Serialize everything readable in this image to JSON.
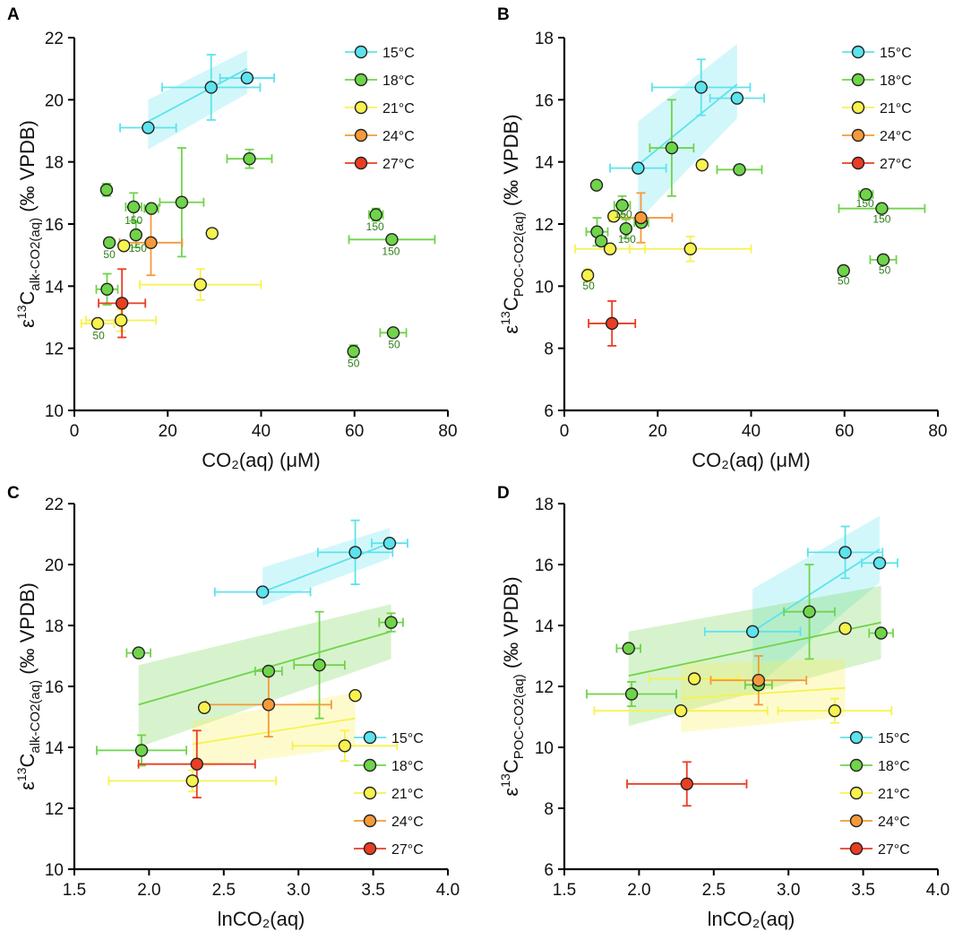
{
  "colors": {
    "15°C": "#5ce3ee",
    "18°C": "#6fd44a",
    "21°C": "#f7f24e",
    "24°C": "#f59a3a",
    "27°C": "#ea3d22"
  },
  "legend": [
    "15°C",
    "18°C",
    "21°C",
    "24°C",
    "27°C"
  ],
  "chart_data": [
    {
      "id": "A",
      "type": "scatter",
      "letter": "A",
      "xlabel": "CO₂(aq) (μM)",
      "ylabel": "ε¹³C_alk-CO2(aq) (‰ VPDB)",
      "ylabel_main": "C",
      "ylabel_sub": "alk-CO2(aq)",
      "ylabel_tail": " (‰ VPDB)",
      "xlim": [
        0,
        80
      ],
      "ylim": [
        10,
        22
      ],
      "xticks": [
        0,
        20,
        40,
        60,
        80
      ],
      "yticks": [
        10,
        12,
        14,
        16,
        18,
        20,
        22
      ],
      "xtick_labels": [
        "0",
        "20",
        "40",
        "60",
        "80"
      ],
      "ytick_labels": [
        "10",
        "12",
        "14",
        "16",
        "18",
        "20",
        "22"
      ],
      "legend_pos": "top-right",
      "series": [
        {
          "name": "15°C",
          "points": [
            {
              "x": 15.8,
              "y": 19.1,
              "xe": 6.0,
              "ye": 0
            },
            {
              "x": 29.3,
              "y": 20.4,
              "xe": 10.5,
              "ye": 1.05
            },
            {
              "x": 37.0,
              "y": 20.7,
              "xe": 5.8,
              "ye": 0
            }
          ],
          "fit": [
            [
              15.8,
              19.3
            ],
            [
              37.0,
              21.0
            ]
          ],
          "band": [
            [
              15.8,
              18.4,
              20.0
            ],
            [
              37.0,
              20.2,
              21.6
            ]
          ]
        },
        {
          "name": "18°C",
          "points": [
            {
              "x": 6.9,
              "y": 17.1,
              "xe": 0.5,
              "ye": 0.2
            },
            {
              "x": 7.5,
              "y": 15.4,
              "xe": 0,
              "ye": 0
            },
            {
              "x": 7.0,
              "y": 13.9,
              "xe": 2.3,
              "ye": 0.5
            },
            {
              "x": 12.7,
              "y": 16.55,
              "xe": 1.7,
              "ye": 0.45
            },
            {
              "x": 13.2,
              "y": 15.65,
              "xe": 0,
              "ye": 0.4
            },
            {
              "x": 16.5,
              "y": 16.5,
              "xe": 1.5,
              "ye": 0
            },
            {
              "x": 23.0,
              "y": 16.7,
              "xe": 4.7,
              "ye": 1.75
            },
            {
              "x": 37.5,
              "y": 18.1,
              "xe": 4.8,
              "ye": 0.3
            },
            {
              "x": 64.6,
              "y": 16.3,
              "xe": 1.5,
              "ye": 0.2
            },
            {
              "x": 68.0,
              "y": 15.5,
              "xe": 9.2,
              "ye": 0
            },
            {
              "x": 59.8,
              "y": 11.9,
              "xe": 0,
              "ye": 0.2
            },
            {
              "x": 68.3,
              "y": 12.5,
              "xe": 2.8,
              "ye": 0
            }
          ]
        },
        {
          "name": "21°C",
          "points": [
            {
              "x": 5.0,
              "y": 12.8,
              "xe": 3.5,
              "ye": 0
            },
            {
              "x": 10.0,
              "y": 12.9,
              "xe": 7.5,
              "ye": 0.35
            },
            {
              "x": 10.6,
              "y": 15.3,
              "xe": 0,
              "ye": 0
            },
            {
              "x": 27.0,
              "y": 14.05,
              "xe": 13.0,
              "ye": 0.5
            },
            {
              "x": 29.5,
              "y": 15.7,
              "xe": 0,
              "ye": 0
            }
          ]
        },
        {
          "name": "24°C",
          "points": [
            {
              "x": 16.4,
              "y": 15.4,
              "xe": 6.7,
              "ye": 1.05
            }
          ]
        },
        {
          "name": "27°C",
          "points": [
            {
              "x": 10.2,
              "y": 13.45,
              "xe": 5.0,
              "ye": 1.1
            }
          ]
        }
      ],
      "annotations": [
        {
          "text": "150",
          "x": 12.7,
          "y": 16.0
        },
        {
          "text": "150",
          "x": 13.6,
          "y": 15.1
        },
        {
          "text": "150",
          "x": 64.4,
          "y": 15.8
        },
        {
          "text": "150",
          "x": 67.8,
          "y": 15.0
        },
        {
          "text": "50",
          "x": 7.5,
          "y": 14.9
        },
        {
          "text": "50",
          "x": 5.2,
          "y": 12.3
        },
        {
          "text": "50",
          "x": 59.8,
          "y": 11.4
        },
        {
          "text": "50",
          "x": 68.5,
          "y": 12.0
        }
      ]
    },
    {
      "id": "B",
      "type": "scatter",
      "letter": "B",
      "xlabel": "CO₂(aq) (μM)",
      "ylabel": "ε¹³C_POC-CO2(aq) (‰ VPDB)",
      "ylabel_main": "C",
      "ylabel_sub": "POC-CO2(aq)",
      "ylabel_tail": " (‰ VPDB)",
      "xlim": [
        0,
        80
      ],
      "ylim": [
        6,
        18
      ],
      "xticks": [
        0,
        20,
        40,
        60,
        80
      ],
      "yticks": [
        6,
        8,
        10,
        12,
        14,
        16,
        18
      ],
      "xtick_labels": [
        "0",
        "20",
        "40",
        "60",
        "80"
      ],
      "ytick_labels": [
        "6",
        "8",
        "10",
        "12",
        "14",
        "16",
        "18"
      ],
      "legend_pos": "top-right",
      "series": [
        {
          "name": "15°C",
          "points": [
            {
              "x": 15.8,
              "y": 13.8,
              "xe": 6.0,
              "ye": 0
            },
            {
              "x": 29.3,
              "y": 16.4,
              "xe": 10.5,
              "ye": 0.9
            },
            {
              "x": 37.0,
              "y": 16.05,
              "xe": 5.8,
              "ye": 0
            }
          ],
          "fit": [
            [
              15.8,
              13.9
            ],
            [
              37.0,
              16.5
            ]
          ],
          "band": [
            [
              15.8,
              12.1,
              15.3
            ],
            [
              37.0,
              15.4,
              17.8
            ]
          ]
        },
        {
          "name": "18°C",
          "points": [
            {
              "x": 6.9,
              "y": 13.25,
              "xe": 0,
              "ye": 0
            },
            {
              "x": 7.0,
              "y": 11.75,
              "xe": 2.3,
              "ye": 0.45
            },
            {
              "x": 7.9,
              "y": 11.45,
              "xe": 0,
              "ye": 0
            },
            {
              "x": 12.4,
              "y": 12.6,
              "xe": 1.7,
              "ye": 0.3
            },
            {
              "x": 13.2,
              "y": 11.85,
              "xe": 0,
              "ye": 0.3
            },
            {
              "x": 16.5,
              "y": 12.05,
              "xe": 1.5,
              "ye": 0
            },
            {
              "x": 23.0,
              "y": 14.45,
              "xe": 4.7,
              "ye": 1.55
            },
            {
              "x": 37.5,
              "y": 13.75,
              "xe": 4.8,
              "ye": 0
            },
            {
              "x": 64.6,
              "y": 12.95,
              "xe": 1.5,
              "ye": 0
            },
            {
              "x": 68.0,
              "y": 12.5,
              "xe": 9.2,
              "ye": 0
            },
            {
              "x": 59.8,
              "y": 10.5,
              "xe": 0,
              "ye": 0
            },
            {
              "x": 68.3,
              "y": 10.85,
              "xe": 2.8,
              "ye": 0
            }
          ]
        },
        {
          "name": "21°C",
          "points": [
            {
              "x": 5.0,
              "y": 10.35,
              "xe": 0,
              "ye": 0.2
            },
            {
              "x": 9.8,
              "y": 11.2,
              "xe": 7.5,
              "ye": 0
            },
            {
              "x": 10.6,
              "y": 12.25,
              "xe": 0,
              "ye": 0
            },
            {
              "x": 27.0,
              "y": 11.2,
              "xe": 13.0,
              "ye": 0.4
            },
            {
              "x": 29.5,
              "y": 13.9,
              "xe": 0,
              "ye": 0
            }
          ]
        },
        {
          "name": "24°C",
          "points": [
            {
              "x": 16.4,
              "y": 12.2,
              "xe": 6.7,
              "ye": 0.8
            }
          ]
        },
        {
          "name": "27°C",
          "points": [
            {
              "x": 10.2,
              "y": 8.8,
              "xe": 5.0,
              "ye": 0.72
            }
          ]
        }
      ],
      "annotations": [
        {
          "text": "150",
          "x": 12.6,
          "y": 12.2
        },
        {
          "text": "150",
          "x": 13.4,
          "y": 11.4
        },
        {
          "text": "150",
          "x": 64.4,
          "y": 12.55
        },
        {
          "text": "150",
          "x": 68.0,
          "y": 12.05
        },
        {
          "text": "50",
          "x": 5.2,
          "y": 9.9
        },
        {
          "text": "50",
          "x": 59.8,
          "y": 10.05
        },
        {
          "text": "50",
          "x": 68.6,
          "y": 10.4
        }
      ]
    },
    {
      "id": "C",
      "type": "scatter",
      "letter": "C",
      "xlabel": "lnCO₂(aq)",
      "ylabel": "ε¹³C_alk-CO2(aq) (‰ VPDB)",
      "ylabel_main": "C",
      "ylabel_sub": "alk-CO2(aq)",
      "ylabel_tail": " (‰ VPDB)",
      "xlim": [
        1.5,
        4.0
      ],
      "ylim": [
        10,
        22
      ],
      "xticks": [
        1.5,
        2.0,
        2.5,
        3.0,
        3.5,
        4.0
      ],
      "yticks": [
        10,
        12,
        14,
        16,
        18,
        20,
        22
      ],
      "xtick_labels": [
        "1.5",
        "2.0",
        "2.5",
        "3.0",
        "3.5",
        "4.0"
      ],
      "ytick_labels": [
        "10",
        "12",
        "14",
        "16",
        "18",
        "20",
        "22"
      ],
      "legend_pos": "bottom-right",
      "series": [
        {
          "name": "15°C",
          "points": [
            {
              "x": 2.76,
              "y": 19.1,
              "xe": 0.32,
              "ye": 0
            },
            {
              "x": 3.38,
              "y": 20.4,
              "xe": 0.25,
              "ye": 1.05
            },
            {
              "x": 3.61,
              "y": 20.7,
              "xe": 0.12,
              "ye": 0
            }
          ],
          "fit": [
            [
              2.76,
              19.1
            ],
            [
              3.61,
              20.7
            ]
          ],
          "band": [
            [
              2.76,
              18.65,
              19.9
            ],
            [
              3.61,
              20.2,
              21.2
            ]
          ]
        },
        {
          "name": "18°C",
          "points": [
            {
              "x": 1.93,
              "y": 17.1,
              "xe": 0.08,
              "ye": 0
            },
            {
              "x": 1.95,
              "y": 13.9,
              "xe": 0.3,
              "ye": 0.5
            },
            {
              "x": 2.8,
              "y": 16.5,
              "xe": 0.09,
              "ye": 0
            },
            {
              "x": 3.14,
              "y": 16.7,
              "xe": 0.17,
              "ye": 1.75
            },
            {
              "x": 3.62,
              "y": 18.1,
              "xe": 0.08,
              "ye": 0.3
            }
          ],
          "fit": [
            [
              1.93,
              15.4
            ],
            [
              3.62,
              17.8
            ]
          ],
          "band": [
            [
              1.93,
              14.0,
              16.7
            ],
            [
              3.62,
              16.9,
              18.7
            ]
          ]
        },
        {
          "name": "21°C",
          "points": [
            {
              "x": 2.29,
              "y": 12.9,
              "xe": 0.56,
              "ye": 0.35
            },
            {
              "x": 2.37,
              "y": 15.3,
              "xe": 0,
              "ye": 0
            },
            {
              "x": 3.31,
              "y": 14.05,
              "xe": 0.35,
              "ye": 0.5
            },
            {
              "x": 3.38,
              "y": 15.7,
              "xe": 0,
              "ye": 0
            }
          ],
          "fit": [
            [
              2.29,
              14.1
            ],
            [
              3.38,
              14.95
            ]
          ],
          "band": [
            [
              2.29,
              13.3,
              14.85
            ],
            [
              3.38,
              14.0,
              15.8
            ]
          ]
        },
        {
          "name": "24°C",
          "points": [
            {
              "x": 2.8,
              "y": 15.4,
              "xe": 0.42,
              "ye": 1.05
            }
          ]
        },
        {
          "name": "27°C",
          "points": [
            {
              "x": 2.32,
              "y": 13.45,
              "xe": 0.39,
              "ye": 1.1
            }
          ]
        }
      ],
      "annotations": []
    },
    {
      "id": "D",
      "type": "scatter",
      "letter": "D",
      "xlabel": "lnCO₂(aq)",
      "ylabel": "ε¹³C_POC-CO2(aq) (‰ VPDB)",
      "ylabel_main": "C",
      "ylabel_sub": "POC-CO2(aq)",
      "ylabel_tail": " (‰ VPDB)",
      "xlim": [
        1.5,
        4.0
      ],
      "ylim": [
        6,
        18
      ],
      "xticks": [
        1.5,
        2.0,
        2.5,
        3.0,
        3.5,
        4.0
      ],
      "yticks": [
        6,
        8,
        10,
        12,
        14,
        16,
        18
      ],
      "xtick_labels": [
        "1.5",
        "2.0",
        "2.5",
        "3.0",
        "3.5",
        "4.0"
      ],
      "ytick_labels": [
        "6",
        "8",
        "10",
        "12",
        "14",
        "16",
        "18"
      ],
      "legend_pos": "bottom-right",
      "series": [
        {
          "name": "15°C",
          "points": [
            {
              "x": 2.76,
              "y": 13.8,
              "xe": 0.32,
              "ye": 0
            },
            {
              "x": 3.38,
              "y": 16.4,
              "xe": 0.25,
              "ye": 0.85
            },
            {
              "x": 3.61,
              "y": 16.05,
              "xe": 0.12,
              "ye": 0
            }
          ],
          "fit": [
            [
              2.76,
              13.8
            ],
            [
              3.61,
              16.5
            ]
          ],
          "band": [
            [
              2.76,
              11.9,
              15.2
            ],
            [
              3.61,
              15.4,
              17.6
            ]
          ]
        },
        {
          "name": "18°C",
          "points": [
            {
              "x": 1.93,
              "y": 13.25,
              "xe": 0.08,
              "ye": 0
            },
            {
              "x": 1.95,
              "y": 11.75,
              "xe": 0.3,
              "ye": 0.4
            },
            {
              "x": 2.8,
              "y": 12.05,
              "xe": 0.09,
              "ye": 0
            },
            {
              "x": 3.14,
              "y": 14.45,
              "xe": 0.17,
              "ye": 1.55
            },
            {
              "x": 3.62,
              "y": 13.75,
              "xe": 0.08,
              "ye": 0
            }
          ],
          "fit": [
            [
              1.93,
              12.35
            ],
            [
              3.62,
              14.1
            ]
          ],
          "band": [
            [
              1.93,
              10.7,
              13.8
            ],
            [
              3.62,
              12.9,
              15.3
            ]
          ]
        },
        {
          "name": "21°C",
          "points": [
            {
              "x": 2.28,
              "y": 11.2,
              "xe": 0.58,
              "ye": 0
            },
            {
              "x": 2.37,
              "y": 12.25,
              "xe": 0.3,
              "ye": 0
            },
            {
              "x": 3.31,
              "y": 11.2,
              "xe": 0.38,
              "ye": 0.4
            },
            {
              "x": 3.38,
              "y": 13.9,
              "xe": 0,
              "ye": 0
            }
          ],
          "fit": [
            [
              2.28,
              11.6
            ],
            [
              3.38,
              11.95
            ]
          ],
          "band": [
            [
              2.28,
              10.5,
              12.75
            ],
            [
              3.38,
              11.0,
              12.9
            ]
          ]
        },
        {
          "name": "24°C",
          "points": [
            {
              "x": 2.8,
              "y": 12.2,
              "xe": 0.32,
              "ye": 0.8
            }
          ]
        },
        {
          "name": "27°C",
          "points": [
            {
              "x": 2.32,
              "y": 8.8,
              "xe": 0.4,
              "ye": 0.72
            }
          ]
        }
      ],
      "annotations": []
    }
  ]
}
